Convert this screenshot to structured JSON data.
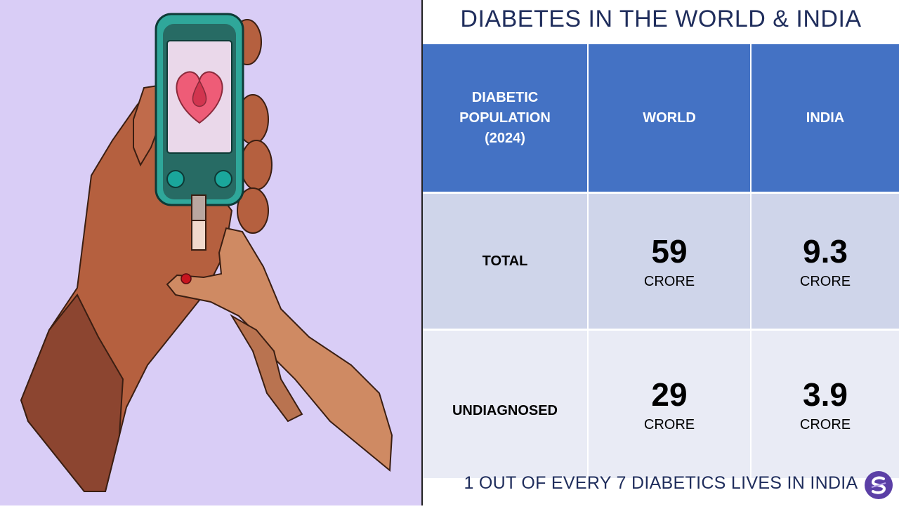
{
  "title": "DIABETES IN THE WORLD & INDIA",
  "table": {
    "header": [
      "DIABETIC\nPOPULATION\n(2024)",
      "WORLD",
      "INDIA"
    ],
    "rows": [
      {
        "label": "TOTAL",
        "world": "59",
        "world_unit": "CRORE",
        "india": "9.3",
        "india_unit": "CRORE"
      },
      {
        "label": "UNDIAGNOSED",
        "world": "29",
        "world_unit": "CRORE",
        "india": "3.9",
        "india_unit": "CRORE"
      }
    ]
  },
  "footer": "1 OUT OF EVERY 7 DIABETICS LIVES IN INDIA",
  "illustration": {
    "subject": "hands-with-glucometer",
    "icons": [
      "heart-icon",
      "blood-drop-icon"
    ]
  },
  "colors": {
    "left_bg": "#d9cdf6",
    "header_blue": "#4472c4",
    "row_total": "#cfd5ea",
    "row_undiagnosed": "#e9ebf5",
    "title_text": "#1f2d5c",
    "device_teal": "#2fa79a"
  }
}
